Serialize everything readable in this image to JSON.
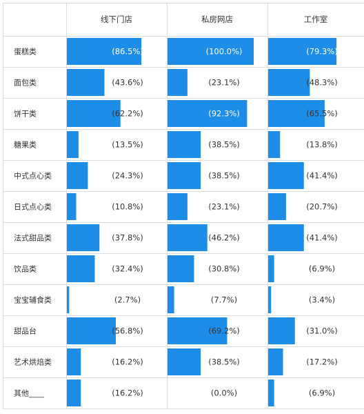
{
  "colors": {
    "bar": "#1d8de8",
    "grid": "#d9dde3",
    "text": "#333333"
  },
  "chart_data": {
    "type": "table",
    "columns": [
      "线下门店",
      "私房网店",
      "工作室"
    ],
    "categories": [
      "蛋糕类",
      "面包类",
      "饼干类",
      "糖果类",
      "中式点心类",
      "日式点心类",
      "法式甜品类",
      "饮品类",
      "宝宝辅食类",
      "甜品台",
      "艺术烘焙类",
      "其他____"
    ],
    "series": [
      {
        "name": "线下门店",
        "values": [
          86.5,
          43.6,
          62.2,
          13.5,
          24.3,
          10.8,
          37.8,
          32.4,
          2.7,
          56.8,
          16.2,
          16.2
        ]
      },
      {
        "name": "私房网店",
        "values": [
          100.0,
          23.1,
          92.3,
          38.5,
          38.5,
          23.1,
          46.2,
          30.8,
          7.7,
          69.2,
          38.5,
          0.0
        ]
      },
      {
        "name": "工作室",
        "values": [
          79.3,
          48.3,
          65.5,
          13.8,
          41.4,
          20.7,
          41.4,
          6.9,
          3.4,
          31.0,
          17.2,
          6.9
        ]
      }
    ],
    "labels": [
      [
        "(86.5%)",
        "(43.6%)",
        "(62.2%)",
        "(13.5%)",
        "(24.3%)",
        "(10.8%)",
        "(37.8%)",
        "(32.4%)",
        "(2.7%)",
        "(56.8%)",
        "(16.2%)",
        "(16.2%)"
      ],
      [
        "(100.0%)",
        "(23.1%)",
        "(92.3%)",
        "(38.5%)",
        "(38.5%)",
        "(23.1%)",
        "(46.2%)",
        "(30.8%)",
        "(7.7%)",
        "(69.2%)",
        "(38.5%)",
        "(0.0%)"
      ],
      [
        "(79.3%)",
        "(48.3%)",
        "(65.5%)",
        "(13.8%)",
        "(41.4%)",
        "(20.7%)",
        "(41.4%)",
        "(6.9%)",
        "(3.4%)",
        "(31.0%)",
        "(17.2%)",
        "(6.9%)"
      ]
    ],
    "xlim": [
      0,
      100
    ]
  }
}
